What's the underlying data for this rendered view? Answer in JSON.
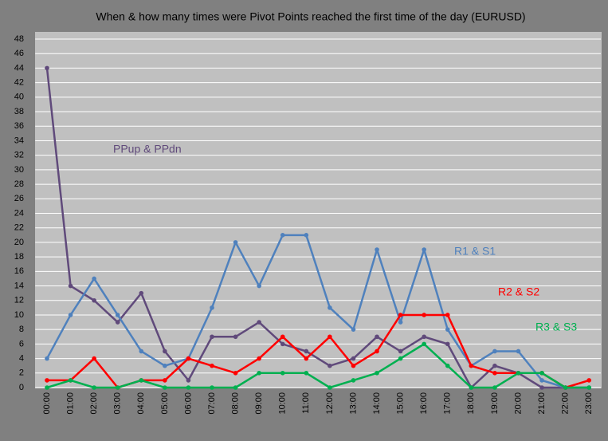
{
  "chart_data": {
    "type": "line",
    "title": "When & how many times were Pivot Points reached the first time of the day (EURUSD)",
    "categories": [
      "00:00",
      "01:00",
      "02:00",
      "03:00",
      "04:00",
      "05:00",
      "06:00",
      "07:00",
      "08:00",
      "09:00",
      "10:00",
      "11:00",
      "12:00",
      "13:00",
      "14:00",
      "15:00",
      "16:00",
      "17:00",
      "18:00",
      "19:00",
      "20:00",
      "21:00",
      "22:00",
      "23:00"
    ],
    "series": [
      {
        "name": "PPup & PPdn",
        "color": "#604a7b",
        "values": [
          44,
          14,
          12,
          9,
          13,
          5,
          1,
          7,
          7,
          9,
          6,
          5,
          3,
          4,
          7,
          5,
          7,
          6,
          0,
          3,
          2,
          0,
          0,
          0
        ]
      },
      {
        "name": "R1 & S1",
        "color": "#4f81bd",
        "values": [
          4,
          10,
          15,
          10,
          5,
          3,
          4,
          11,
          20,
          14,
          21,
          21,
          11,
          8,
          19,
          9,
          19,
          8,
          3,
          5,
          5,
          1,
          0,
          0
        ]
      },
      {
        "name": "R2 & S2",
        "color": "#ff0000",
        "values": [
          1,
          1,
          4,
          0,
          1,
          1,
          4,
          3,
          2,
          4,
          7,
          4,
          7,
          3,
          5,
          10,
          10,
          10,
          3,
          2,
          2,
          2,
          0,
          1
        ]
      },
      {
        "name": "R3 & S3",
        "color": "#00b050",
        "values": [
          0,
          1,
          0,
          0,
          1,
          0,
          0,
          0,
          0,
          2,
          2,
          2,
          0,
          1,
          2,
          4,
          6,
          3,
          0,
          0,
          2,
          2,
          0,
          0
        ]
      }
    ],
    "ylim": [
      0,
      48
    ],
    "yticks": [
      0,
      2,
      4,
      6,
      8,
      10,
      12,
      14,
      16,
      18,
      20,
      22,
      24,
      26,
      28,
      30,
      32,
      34,
      36,
      38,
      40,
      42,
      44,
      46,
      48
    ],
    "grid": true
  }
}
